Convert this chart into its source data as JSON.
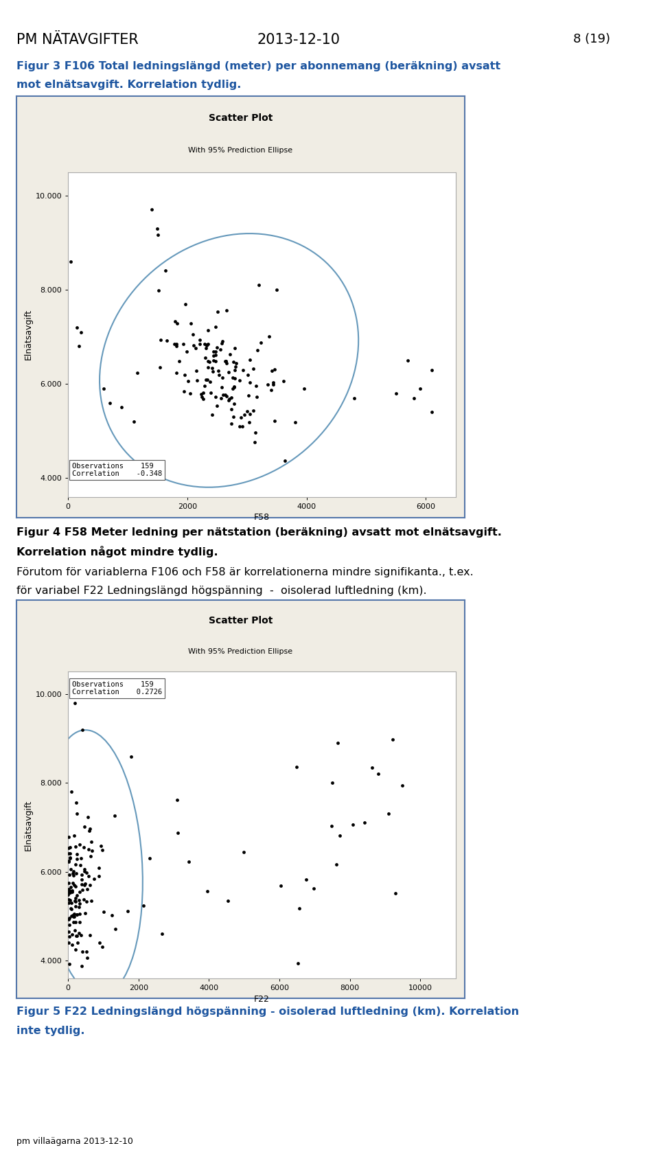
{
  "page_header_left": "PM NÄTAVGIFTER",
  "page_header_center": "2013-12-10",
  "page_header_right": "8 (19)",
  "fig3_caption_line1": "Figur 3 F106 Total ledningslängd (meter) per abonnemang (beräkning) avsatt",
  "fig3_caption_line2": "mot elnätsavgift. Korrelation tydlig.",
  "fig3_caption_color": "#1E56A0",
  "fig3_title": "Scatter Plot",
  "fig3_subtitle": "With 95% Prediction Ellipse",
  "fig3_xlabel": "F58",
  "fig3_ylabel": "Elnätsavgift",
  "fig3_xlim": [
    0,
    6500
  ],
  "fig3_ylim": [
    3600,
    10500
  ],
  "fig3_yticks": [
    4000,
    6000,
    8000,
    10000
  ],
  "fig3_ytick_labels": [
    "4.000",
    "6.000",
    "8.000",
    "10.000"
  ],
  "fig3_xticks": [
    0,
    2000,
    4000,
    6000
  ],
  "fig3_obs": 159,
  "fig3_corr": "-0.348",
  "fig4_caption_line1": "Figur 4 F58 Meter ledning per nätstation (beräkning) avsatt mot elnätsavgift.",
  "fig4_caption_line2": "Korrelation något mindre tydlig.",
  "fig4_caption_color": "#000000",
  "fig5_text_line1": "Förutom för variablerna F106 och F58 är korrelationerna mindre signifikanta., t.ex.",
  "fig5_text_line2": "för variabel F22 Ledningslängd högspänning  -  oisolerad luftledning (km).",
  "fig5_text_color": "#000000",
  "fig5_title": "Scatter Plot",
  "fig5_subtitle": "With 95% Prediction Ellipse",
  "fig5_xlabel": "F22",
  "fig5_ylabel": "Elnätsavgift",
  "fig5_xlim": [
    0,
    11000
  ],
  "fig5_ylim": [
    3600,
    10500
  ],
  "fig5_yticks": [
    4000,
    6000,
    8000,
    10000
  ],
  "fig5_ytick_labels": [
    "4.000",
    "6.000",
    "8.000",
    "10.000"
  ],
  "fig5_xticks": [
    0,
    2000,
    4000,
    6000,
    8000,
    10000
  ],
  "fig5_obs": 159,
  "fig5_corr": "0.2726",
  "fig5_caption_line1": "Figur 5 F22 Ledningslängd högspänning - oisolerad luftledning (km). Korrelation",
  "fig5_caption_line2": "inte tydlig.",
  "fig5_caption_color": "#1E56A0",
  "footer_text": "pm villaägarna 2013-12-10",
  "bg_color": "#ffffff",
  "plot_inner_bg": "#ffffff",
  "plot_outer_bg": "#f0ede4",
  "border_color": "#5577aa",
  "ellipse_color": "#6699bb",
  "scatter_color": "#000000"
}
